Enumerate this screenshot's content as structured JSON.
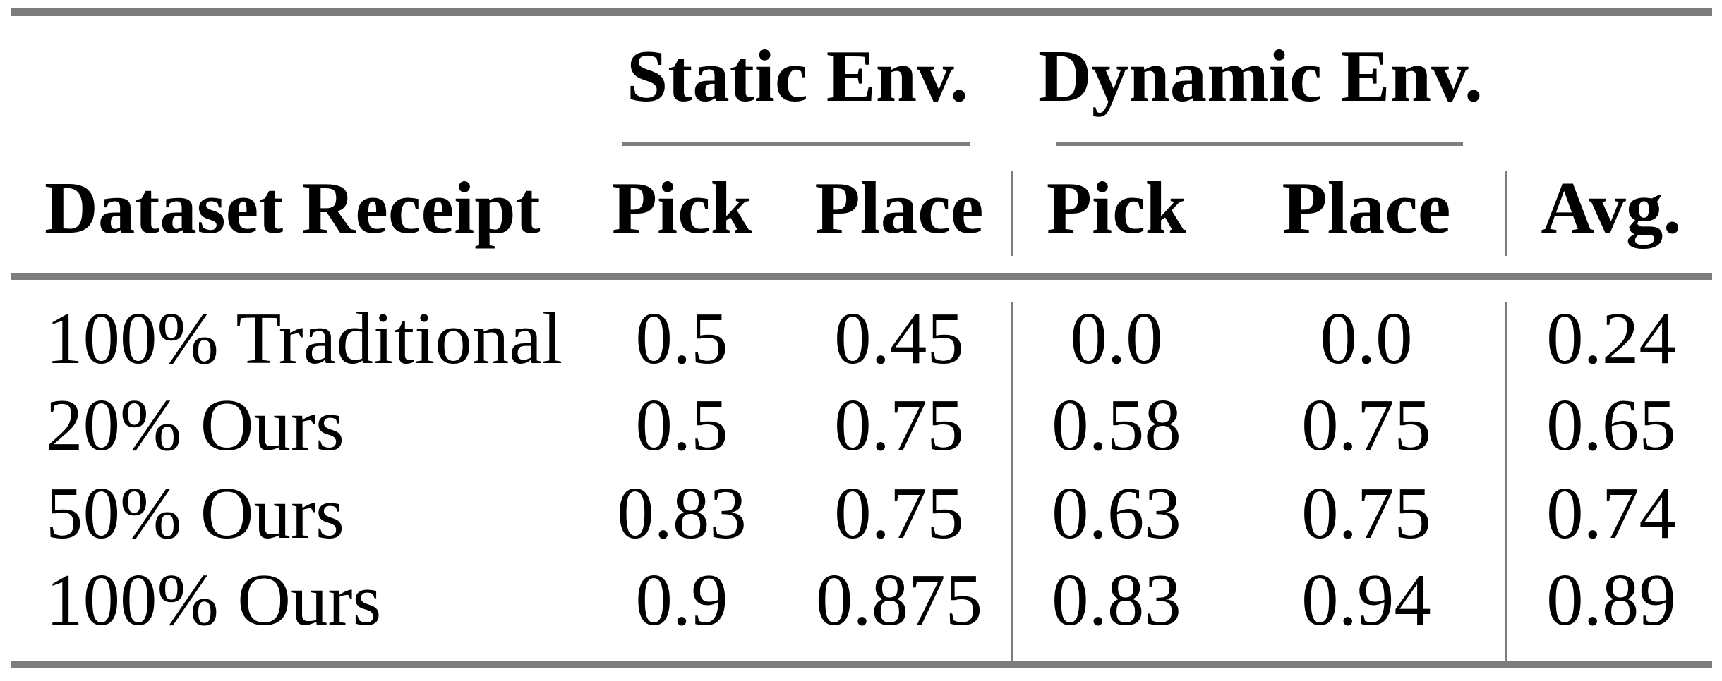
{
  "table": {
    "group_headers": [
      {
        "label": "Static Env."
      },
      {
        "label": "Dynamic Env."
      }
    ],
    "column_headers": {
      "dataset": "Dataset Receipt",
      "static_pick": "Pick",
      "static_place": "Place",
      "dynamic_pick": "Pick",
      "dynamic_place": "Place",
      "avg": "Avg."
    },
    "rows": [
      {
        "cells": [
          "100% Traditional",
          "0.5",
          "0.45",
          "0.0",
          "0.0",
          "0.24"
        ]
      },
      {
        "cells": [
          "20% Ours",
          "0.5",
          "0.75",
          "0.58",
          "0.75",
          "0.65"
        ]
      },
      {
        "cells": [
          "50% Ours",
          "0.83",
          "0.75",
          "0.63",
          "0.75",
          "0.74"
        ]
      },
      {
        "cells": [
          "100% Ours",
          "0.9",
          "0.875",
          "0.83",
          "0.94",
          "0.89"
        ]
      }
    ],
    "colors": {
      "rule_gray": "#7d7d7d",
      "text": "#000000",
      "background": "#ffffff"
    }
  },
  "chart_data": {
    "type": "table",
    "column_groups": [
      {
        "label": "Static Env.",
        "columns": [
          "Pick",
          "Place"
        ]
      },
      {
        "label": "Dynamic Env.",
        "columns": [
          "Pick",
          "Place"
        ]
      }
    ],
    "columns": [
      "Dataset Receipt",
      "Static Env. Pick",
      "Static Env. Place",
      "Dynamic Env. Pick",
      "Dynamic Env. Place",
      "Avg."
    ],
    "rows": [
      [
        "100% Traditional",
        0.5,
        0.45,
        0.0,
        0.0,
        0.24
      ],
      [
        "20% Ours",
        0.5,
        0.75,
        0.58,
        0.75,
        0.65
      ],
      [
        "50% Ours",
        0.83,
        0.75,
        0.63,
        0.75,
        0.74
      ],
      [
        "100% Ours",
        0.9,
        0.875,
        0.83,
        0.94,
        0.89
      ]
    ]
  }
}
